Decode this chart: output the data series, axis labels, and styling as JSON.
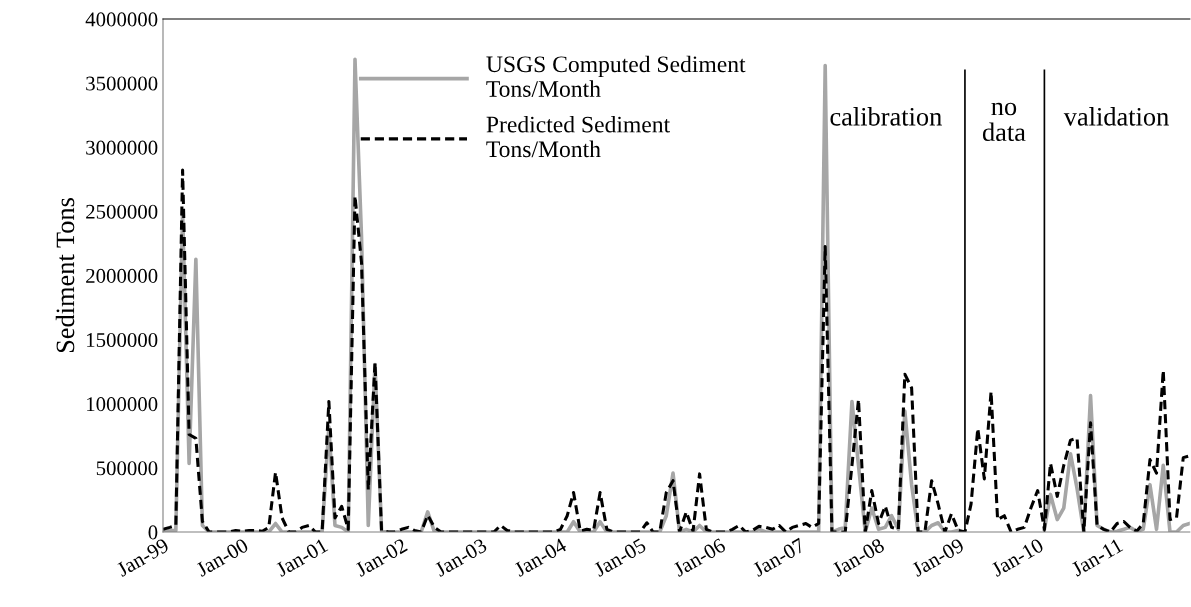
{
  "chart_data": {
    "type": "line",
    "ylabel": "Sediment Tons",
    "x": [
      "1999-01",
      "1999-02",
      "1999-03",
      "1999-04",
      "1999-05",
      "1999-06",
      "1999-07",
      "1999-08",
      "1999-09",
      "1999-10",
      "1999-11",
      "1999-12",
      "2000-01",
      "2000-02",
      "2000-03",
      "2000-04",
      "2000-05",
      "2000-06",
      "2000-07",
      "2000-08",
      "2000-09",
      "2000-10",
      "2000-11",
      "2000-12",
      "2001-01",
      "2001-02",
      "2001-03",
      "2001-04",
      "2001-05",
      "2001-06",
      "2001-07",
      "2001-08",
      "2001-09",
      "2001-10",
      "2001-11",
      "2001-12",
      "2002-01",
      "2002-02",
      "2002-03",
      "2002-04",
      "2002-05",
      "2002-06",
      "2002-07",
      "2002-08",
      "2002-09",
      "2002-10",
      "2002-11",
      "2002-12",
      "2003-01",
      "2003-02",
      "2003-03",
      "2003-04",
      "2003-05",
      "2003-06",
      "2003-07",
      "2003-08",
      "2003-09",
      "2003-10",
      "2003-11",
      "2003-12",
      "2004-01",
      "2004-02",
      "2004-03",
      "2004-04",
      "2004-05",
      "2004-06",
      "2004-07",
      "2004-08",
      "2004-09",
      "2004-10",
      "2004-11",
      "2004-12",
      "2005-01",
      "2005-02",
      "2005-03",
      "2005-04",
      "2005-05",
      "2005-06",
      "2005-07",
      "2005-08",
      "2005-09",
      "2005-10",
      "2005-11",
      "2005-12",
      "2006-01",
      "2006-02",
      "2006-03",
      "2006-04",
      "2006-05",
      "2006-06",
      "2006-07",
      "2006-08",
      "2006-09",
      "2006-10",
      "2006-11",
      "2006-12",
      "2007-01",
      "2007-02",
      "2007-03",
      "2007-04",
      "2007-05",
      "2007-06",
      "2007-07",
      "2007-08",
      "2007-09",
      "2007-10",
      "2007-11",
      "2007-12",
      "2008-01",
      "2008-02",
      "2008-03",
      "2008-04",
      "2008-05",
      "2008-06",
      "2008-07",
      "2008-08",
      "2008-09",
      "2008-10",
      "2008-11",
      "2008-12",
      "2009-01",
      "2009-02",
      "2009-03",
      "2009-04",
      "2009-05",
      "2009-06",
      "2009-07",
      "2009-08",
      "2009-09",
      "2009-10",
      "2009-11",
      "2009-12",
      "2010-01",
      "2010-02",
      "2010-03",
      "2010-04",
      "2010-05",
      "2010-06",
      "2010-07",
      "2010-08",
      "2010-09",
      "2010-10",
      "2010-11",
      "2010-12",
      "2011-01",
      "2011-02",
      "2011-03",
      "2011-04",
      "2011-05",
      "2011-06",
      "2011-07",
      "2011-08",
      "2011-09",
      "2011-10",
      "2011-11",
      "2011-12"
    ],
    "series": [
      {
        "name": "USGS Computed Sediment\nTons/Month",
        "color": "#a6a6a6",
        "line_style": "solid",
        "values": [
          0,
          12000,
          12000,
          2500000,
          535000,
          2127000,
          51000,
          0,
          0,
          0,
          0,
          0,
          0,
          0,
          0,
          0,
          0,
          66000,
          0,
          0,
          0,
          0,
          0,
          0,
          0,
          820000,
          51000,
          36000,
          0,
          3686000,
          2300000,
          51000,
          1305000,
          12000,
          0,
          0,
          0,
          0,
          0,
          0,
          157000,
          0,
          0,
          0,
          0,
          0,
          0,
          0,
          0,
          0,
          0,
          0,
          0,
          0,
          0,
          0,
          0,
          0,
          0,
          0,
          0,
          0,
          80000,
          0,
          0,
          0,
          80000,
          0,
          0,
          0,
          0,
          0,
          0,
          0,
          0,
          0,
          127000,
          459000,
          0,
          21000,
          0,
          51000,
          0,
          0,
          0,
          0,
          0,
          0,
          0,
          0,
          21000,
          0,
          0,
          0,
          0,
          0,
          0,
          0,
          0,
          0,
          3637000,
          0,
          21000,
          36000,
          1018000,
          520000,
          0,
          187000,
          21000,
          36000,
          127000,
          21000,
          943000,
          369000,
          0,
          0,
          51000,
          72000,
          0,
          0,
          12000,
          null,
          null,
          null,
          null,
          null,
          null,
          null,
          null,
          null,
          null,
          null,
          null,
          21000,
          293000,
          97000,
          187000,
          610000,
          340000,
          0,
          1063000,
          51000,
          21000,
          0,
          6000,
          21000,
          36000,
          6000,
          21000,
          369000,
          21000,
          520000,
          0,
          0,
          51000,
          66000
        ]
      },
      {
        "name": "Predicted Sediment\nTons/Month",
        "color": "#000000",
        "line_style": "dashed",
        "values": [
          21000,
          36000,
          51000,
          2822000,
          760000,
          730000,
          82000,
          0,
          0,
          0,
          0,
          12000,
          6000,
          12000,
          12000,
          6000,
          36000,
          465000,
          110000,
          0,
          0,
          36000,
          51000,
          0,
          0,
          1018000,
          110000,
          200000,
          21000,
          2619000,
          2100000,
          330000,
          1320000,
          12000,
          0,
          0,
          21000,
          36000,
          12000,
          0,
          130000,
          36000,
          0,
          0,
          0,
          0,
          0,
          0,
          0,
          0,
          0,
          51000,
          12000,
          0,
          0,
          0,
          0,
          0,
          0,
          0,
          21000,
          127000,
          308000,
          6000,
          21000,
          12000,
          308000,
          21000,
          0,
          0,
          0,
          0,
          0,
          72000,
          0,
          0,
          308000,
          400000,
          0,
          157000,
          6000,
          453000,
          21000,
          0,
          0,
          0,
          21000,
          51000,
          0,
          12000,
          45000,
          36000,
          21000,
          51000,
          0,
          36000,
          51000,
          66000,
          36000,
          66000,
          2226000,
          0,
          0,
          0,
          520000,
          1033000,
          0,
          323000,
          66000,
          202000,
          36000,
          21000,
          1230000,
          1124000,
          0,
          0,
          400000,
          217000,
          0,
          142000,
          12000,
          0,
          217000,
          807000,
          414000,
          1094000,
          97000,
          127000,
          0,
          21000,
          36000,
          187000,
          323000,
          21000,
          535000,
          278000,
          520000,
          716000,
          731000,
          0,
          852000,
          51000,
          21000,
          0,
          66000,
          82000,
          36000,
          6000,
          66000,
          565000,
          459000,
          1260000,
          97000,
          112000,
          580000,
          595000
        ]
      }
    ],
    "xlim": [
      "1999-01",
      "2011-12"
    ],
    "xticks": [
      {
        "value": "1999-01",
        "label": "Jan-99"
      },
      {
        "value": "2000-01",
        "label": "Jan-00"
      },
      {
        "value": "2001-01",
        "label": "Jan-01"
      },
      {
        "value": "2002-01",
        "label": "Jan-02"
      },
      {
        "value": "2003-01",
        "label": "Jan-03"
      },
      {
        "value": "2004-01",
        "label": "Jan-04"
      },
      {
        "value": "2005-01",
        "label": "Jan-05"
      },
      {
        "value": "2006-01",
        "label": "Jan-06"
      },
      {
        "value": "2007-01",
        "label": "Jan-07"
      },
      {
        "value": "2008-01",
        "label": "Jan-08"
      },
      {
        "value": "2009-01",
        "label": "Jan-09"
      },
      {
        "value": "2010-01",
        "label": "Jan-10"
      },
      {
        "value": "2011-01",
        "label": "Jan-11"
      }
    ],
    "ylim": [
      0,
      4000000
    ],
    "yticks": [
      0,
      500000,
      1000000,
      1500000,
      2000000,
      2500000,
      3000000,
      3500000,
      4000000
    ],
    "ref_lines": [
      {
        "axis": "x",
        "value": "2009-02",
        "color": "#000000"
      },
      {
        "axis": "x",
        "value": "2010-02",
        "color": "#000000"
      }
    ],
    "annotations": [
      "calibration",
      "no\ndata",
      "validation"
    ],
    "grid": false,
    "legend": "top",
    "marker": "none"
  }
}
